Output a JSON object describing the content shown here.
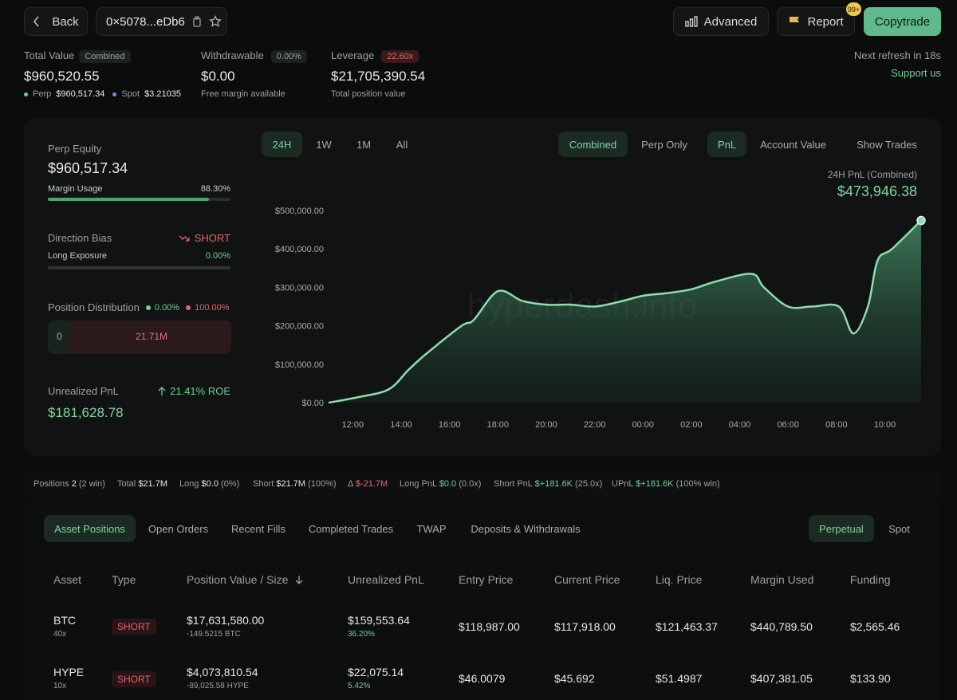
{
  "header": {
    "back_label": "Back",
    "address": "0×5078...eDb6",
    "advanced_label": "Advanced",
    "report_label": "Report",
    "report_badge": "99+",
    "copytrade_label": "Copytrade"
  },
  "summary": {
    "total_value_label": "Total Value",
    "total_value_tag": "Combined",
    "total_value": "$960,520.55",
    "perp_label": "Perp",
    "perp_value": "$960,517.34",
    "spot_label": "Spot",
    "spot_value": "$3.21035",
    "withdrawable_label": "Withdrawable",
    "withdrawable_tag": "0.00%",
    "withdrawable_value": "$0.00",
    "withdrawable_sub": "Free margin available",
    "leverage_label": "Leverage",
    "leverage_tag": "22.60x",
    "leverage_value": "$21,705,390.54",
    "leverage_sub": "Total position value",
    "refresh_text": "Next refresh in 18s",
    "support_link": "Support us"
  },
  "left_panel": {
    "perp_equity_label": "Perp Equity",
    "perp_equity_value": "$960,517.34",
    "margin_usage_label": "Margin Usage",
    "margin_usage_value": "88.30%",
    "margin_usage_fraction": 0.883,
    "direction_bias_label": "Direction Bias",
    "direction_bias_value": "SHORT",
    "long_exposure_label": "Long Exposure",
    "long_exposure_value": "0.00%",
    "position_dist_label": "Position Distribution",
    "dist_long_pct": "0.00%",
    "dist_short_pct": "100.00%",
    "dist_long_value": "0",
    "dist_short_value": "21.71M",
    "upnl_label": "Unrealized PnL",
    "upnl_roe": "21.41% ROE",
    "upnl_value": "$181,628.78"
  },
  "chart_controls": {
    "time_tabs": [
      "24H",
      "1W",
      "1M",
      "All"
    ],
    "mode_tabs": [
      "Combined",
      "Perp Only"
    ],
    "metric_tabs": [
      "PnL",
      "Account Value"
    ],
    "show_trades": "Show Trades",
    "pnl_label": "24H PnL (Combined)",
    "pnl_value": "$473,946.38"
  },
  "chart_data": {
    "type": "area",
    "y_tick_labels": [
      "$500,000.00",
      "$400,000.00",
      "$300,000.00",
      "$200,000.00",
      "$100,000.00",
      "$0.00"
    ],
    "y_ticks": [
      500000,
      400000,
      300000,
      200000,
      100000,
      0
    ],
    "ylim": [
      0,
      500000
    ],
    "x_tick_labels": [
      "12:00",
      "14:00",
      "16:00",
      "18:00",
      "20:00",
      "22:00",
      "00:00",
      "02:00",
      "04:00",
      "06:00",
      "08:00",
      "10:00"
    ],
    "x_ticks": [
      12,
      14,
      16,
      18,
      20,
      22,
      24,
      26,
      28,
      30,
      32,
      34
    ],
    "xlim": [
      11,
      35.5
    ],
    "x": [
      11,
      12.3,
      13.5,
      14.3,
      15,
      16.5,
      17,
      18,
      19,
      20,
      21,
      22,
      23,
      24,
      25,
      26,
      27,
      28.5,
      29,
      30,
      31,
      32.1,
      32.7,
      33.3,
      33.7,
      34.3,
      35.5
    ],
    "values": [
      0,
      15000,
      35000,
      85000,
      125000,
      200000,
      215000,
      290000,
      265000,
      255000,
      255000,
      250000,
      262000,
      278000,
      285000,
      295000,
      315000,
      335000,
      300000,
      250000,
      250000,
      250000,
      180000,
      250000,
      370000,
      400000,
      473946
    ],
    "color": "#7fd4a1"
  },
  "watermark": "hyperdash.info",
  "stats_bar": {
    "positions_label": "Positions",
    "positions_value": "2",
    "positions_win": "(2 win)",
    "total_label": "Total",
    "total_value": "$21.7M",
    "long_label": "Long",
    "long_value": "$0.0",
    "long_pct": "(0%)",
    "short_label": "Short",
    "short_value": "$21.7M",
    "short_pct": "(100%)",
    "delta_label": "Δ",
    "delta_value": "$-21.7M",
    "long_pnl_label": "Long PnL",
    "long_pnl_value": "$0.0",
    "long_pnl_x": "(0.0x)",
    "short_pnl_label": "Short PnL",
    "short_pnl_value": "$+181.6K",
    "short_pnl_x": "(25.0x)",
    "upnl_label": "UPnL",
    "upnl_value": "$+181.6K",
    "upnl_win": "(100% win)"
  },
  "table_tabs": [
    "Asset Positions",
    "Open Orders",
    "Recent Fills",
    "Completed Trades",
    "TWAP",
    "Deposits & Withdrawals"
  ],
  "market_tabs": [
    "Perpetual",
    "Spot"
  ],
  "table": {
    "headers": [
      "Asset",
      "Type",
      "Position Value / Size",
      "Unrealized PnL",
      "Entry Price",
      "Current Price",
      "Liq. Price",
      "Margin Used",
      "Funding"
    ],
    "rows": [
      {
        "asset": "BTC",
        "leverage": "40x",
        "type": "SHORT",
        "value": "$17,631,580.00",
        "size": "-149.5215 BTC",
        "upnl": "$159,553.64",
        "upnl_pct": "36.20%",
        "entry": "$118,987.00",
        "current": "$117,918.00",
        "liq": "$121,463.37",
        "margin": "$440,789.50",
        "funding": "$2,565.46"
      },
      {
        "asset": "HYPE",
        "leverage": "10x",
        "type": "SHORT",
        "value": "$4,073,810.54",
        "size": "-89,025.58 HYPE",
        "upnl": "$22,075.14",
        "upnl_pct": "5.42%",
        "entry": "$46.0079",
        "current": "$45.692",
        "liq": "$51.4987",
        "margin": "$407,381.05",
        "funding": "$133.90"
      }
    ]
  }
}
